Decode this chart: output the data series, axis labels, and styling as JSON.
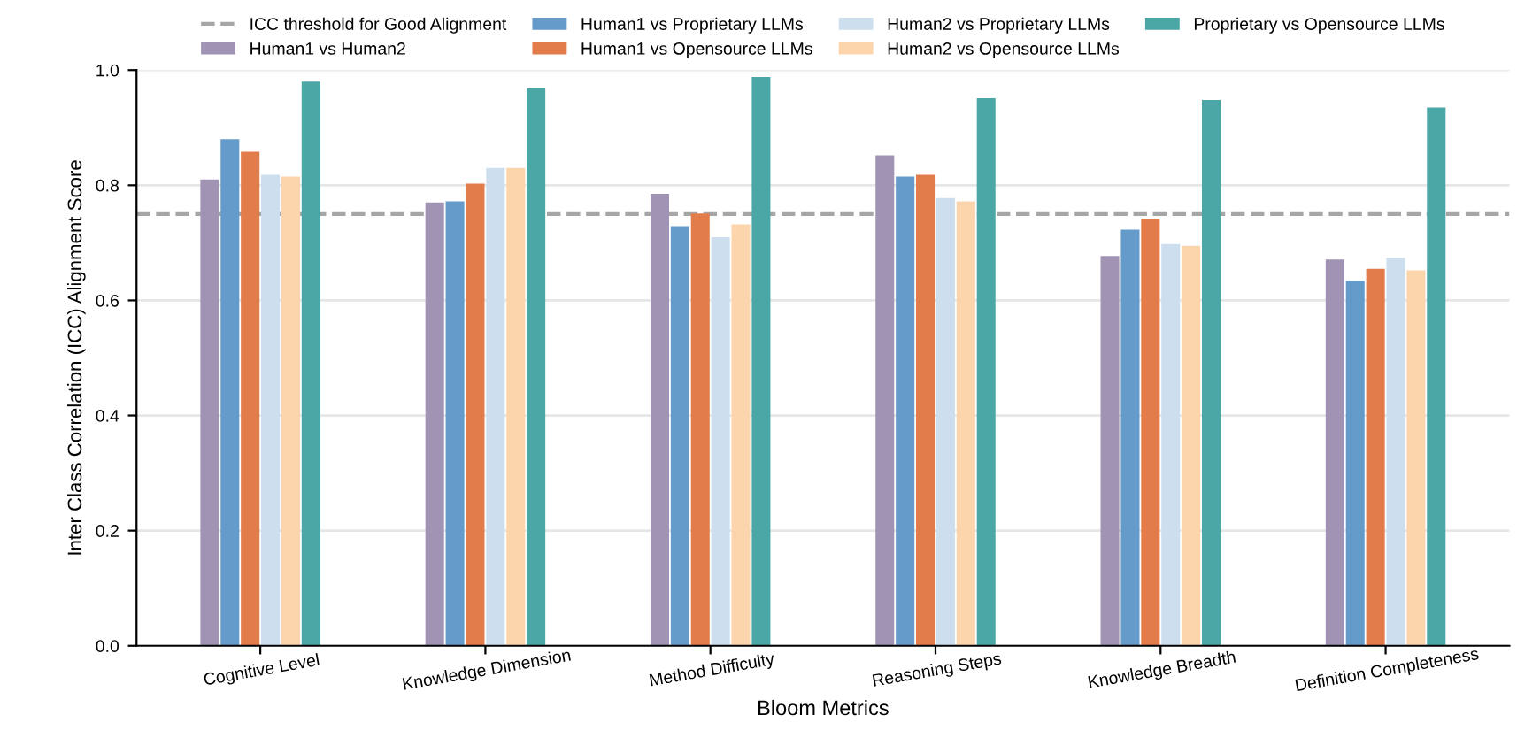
{
  "chart_data": {
    "type": "bar",
    "xlabel": "Bloom Metrics",
    "ylabel": "Inter Class Correlation (ICC) Alignment Score",
    "categories": [
      "Cognitive Level",
      "Knowledge Dimension",
      "Method Difficulty",
      "Reasoning Steps",
      "Knowledge Breadth",
      "Definition Completeness"
    ],
    "series": [
      {
        "name": "Human1 vs Human2",
        "color": "#a193b4",
        "values": [
          0.81,
          0.77,
          0.785,
          0.852,
          0.677,
          0.671
        ]
      },
      {
        "name": "Human1 vs Proprietary LLMs",
        "color": "#649bcb",
        "values": [
          0.88,
          0.772,
          0.729,
          0.815,
          0.723,
          0.634
        ]
      },
      {
        "name": "Human1 vs Opensource LLMs",
        "color": "#e27d4b",
        "values": [
          0.858,
          0.803,
          0.751,
          0.818,
          0.742,
          0.655
        ]
      },
      {
        "name": "Human2 vs Proprietary LLMs",
        "color": "#cddfee",
        "values": [
          0.818,
          0.83,
          0.71,
          0.778,
          0.698,
          0.674
        ]
      },
      {
        "name": "Human2 vs Opensource LLMs",
        "color": "#fdd5ac",
        "values": [
          0.815,
          0.83,
          0.732,
          0.772,
          0.695,
          0.652
        ]
      },
      {
        "name": "Proprietary vs Opensource LLMs",
        "color": "#4ba7a5",
        "values": [
          0.98,
          0.968,
          0.988,
          0.951,
          0.948,
          0.935
        ]
      }
    ],
    "ref_lines": [
      {
        "axis": "y",
        "value": 0.75,
        "label": "ICC threshold for Good Alignment",
        "color": "#a6a6a6",
        "line_style": "dashed"
      }
    ],
    "ylim": [
      0,
      1.0
    ],
    "yticks": [
      {
        "value": 0,
        "label": "0.0"
      },
      0.2,
      0.4,
      0.6,
      0.8,
      {
        "value": 1,
        "label": "1.0"
      }
    ],
    "grid": "y",
    "legend": "top"
  }
}
